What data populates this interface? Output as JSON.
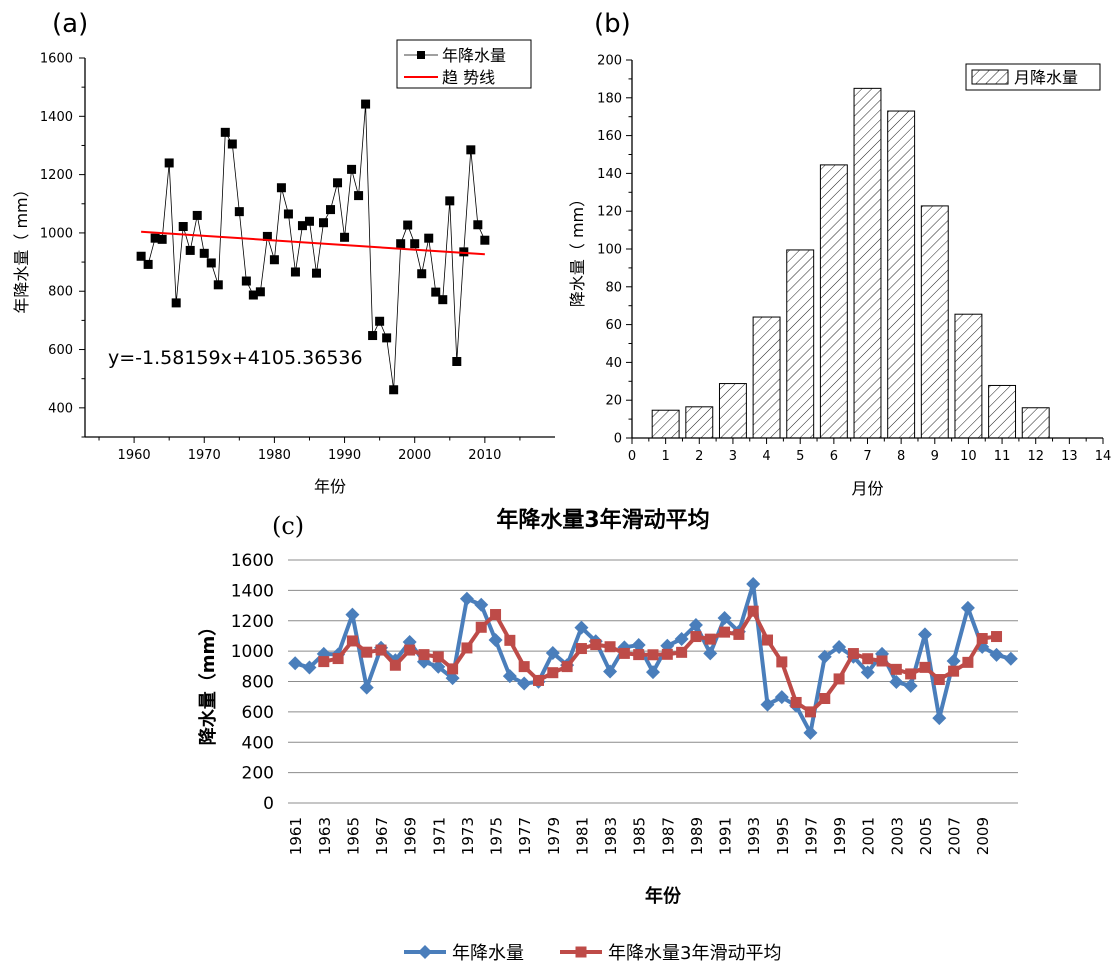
{
  "chart_data": [
    {
      "panel": "(a)",
      "type": "scatter",
      "x": [
        1961,
        1962,
        1963,
        1964,
        1965,
        1966,
        1967,
        1968,
        1969,
        1970,
        1971,
        1972,
        1973,
        1974,
        1975,
        1976,
        1977,
        1978,
        1979,
        1980,
        1981,
        1982,
        1983,
        1984,
        1985,
        1986,
        1987,
        1988,
        1989,
        1990,
        1991,
        1992,
        1993,
        1994,
        1995,
        1996,
        1997,
        1998,
        1999,
        2000,
        2001,
        2002,
        2003,
        2004,
        2005,
        2006,
        2007,
        2008,
        2009,
        2010
      ],
      "series": [
        {
          "name": "年降水量",
          "values": [
            920,
            892,
            982,
            978,
            1240,
            760,
            1022,
            940,
            1060,
            930,
            897,
            822,
            1345,
            1305,
            1073,
            835,
            787,
            798,
            988,
            908,
            1155,
            1065,
            866,
            1025,
            1040,
            862,
            1035,
            1080,
            1172,
            985,
            1218,
            1128,
            1442,
            648,
            697,
            640,
            462,
            963,
            1027,
            963,
            860,
            982,
            797,
            771,
            1110,
            559,
            935,
            1285,
            1028,
            975
          ],
          "color": "#000000"
        },
        {
          "name": "趋 势线",
          "line": [
            [
              1961,
              1004.2
            ],
            [
              2010,
              926.8
            ]
          ],
          "color": "#ff0000"
        }
      ],
      "annotation": "y=-1.58159x+4105.36536",
      "xlabel": "年份",
      "ylabel": "年降水量（ mm）",
      "xlim": [
        1953,
        2020
      ],
      "ylim": [
        300,
        1600
      ],
      "xticks": [
        1960,
        1970,
        1980,
        1990,
        2000,
        2010
      ],
      "yticks": [
        400,
        600,
        800,
        1000,
        1200,
        1400,
        1600
      ],
      "legend": "top-right"
    },
    {
      "panel": "(b)",
      "type": "bar",
      "categories": [
        1,
        2,
        3,
        4,
        5,
        6,
        7,
        8,
        9,
        10,
        11,
        12
      ],
      "series": [
        {
          "name": "月降水量",
          "values": [
            14.7,
            16.5,
            28.8,
            64.0,
            99.5,
            144.5,
            185.0,
            173.0,
            122.8,
            65.5,
            27.8,
            16.0
          ]
        }
      ],
      "xlabel": "月份",
      "ylabel": "降水量（ mm）",
      "xlim": [
        0,
        14
      ],
      "ylim": [
        0,
        200
      ],
      "xticks": [
        0,
        1,
        2,
        3,
        4,
        5,
        6,
        7,
        8,
        9,
        10,
        11,
        12,
        13,
        14
      ],
      "yticks": [
        0,
        20,
        40,
        60,
        80,
        100,
        120,
        140,
        160,
        180,
        200
      ],
      "legend": "top-right"
    },
    {
      "panel": "(c)",
      "type": "line",
      "title": "年降水量3年滑动平均",
      "x": [
        1961,
        1962,
        1963,
        1964,
        1965,
        1966,
        1967,
        1968,
        1969,
        1970,
        1971,
        1972,
        1973,
        1974,
        1975,
        1976,
        1977,
        1978,
        1979,
        1980,
        1981,
        1982,
        1983,
        1984,
        1985,
        1986,
        1987,
        1988,
        1989,
        1990,
        1991,
        1992,
        1993,
        1994,
        1995,
        1996,
        1997,
        1998,
        1999,
        2000,
        2001,
        2002,
        2003,
        2004,
        2005,
        2006,
        2007,
        2008,
        2009,
        2010,
        2011
      ],
      "xticklabels": [
        "1961",
        "1963",
        "1965",
        "1967",
        "1969",
        "1971",
        "1973",
        "1975",
        "1977",
        "1979",
        "1981",
        "1983",
        "1985",
        "1987",
        "1989",
        "1991",
        "1993",
        "1995",
        "1997",
        "1999",
        "2001",
        "2003",
        "2005",
        "2007",
        "2009"
      ],
      "series": [
        {
          "name": "年降水量",
          "color": "#4a7ebb",
          "values": [
            920,
            892,
            982,
            978,
            1240,
            760,
            1022,
            940,
            1060,
            930,
            897,
            822,
            1345,
            1305,
            1073,
            835,
            787,
            798,
            988,
            908,
            1155,
            1065,
            866,
            1025,
            1040,
            862,
            1035,
            1080,
            1172,
            985,
            1218,
            1128,
            1442,
            648,
            697,
            640,
            462,
            963,
            1027,
            963,
            860,
            982,
            797,
            771,
            1110,
            559,
            935,
            1285,
            1028,
            975,
            950
          ]
        },
        {
          "name": "年降水量3年滑动平均",
          "color": "#be4b48",
          "values": [
            null,
            null,
            931,
            951,
            1067,
            993,
            1007,
            907,
            1007,
            977,
            962,
            883,
            1021,
            1157,
            1241,
            1071,
            898,
            807,
            858,
            898,
            1017,
            1043,
            1029,
            985,
            977,
            976,
            979,
            992,
            1096,
            1079,
            1125,
            1110,
            1263,
            1073,
            929,
            662,
            600,
            688,
            817,
            984,
            950,
            935,
            880,
            850,
            893,
            813,
            868,
            926,
            1083,
            1096,
            null
          ]
        }
      ],
      "xlabel": "年份",
      "ylabel": "降水量（mm）",
      "ylim": [
        0,
        1600
      ],
      "yticks": [
        0,
        200,
        400,
        600,
        800,
        1000,
        1200,
        1400,
        1600
      ],
      "grid": true,
      "legend": "bottom"
    }
  ]
}
